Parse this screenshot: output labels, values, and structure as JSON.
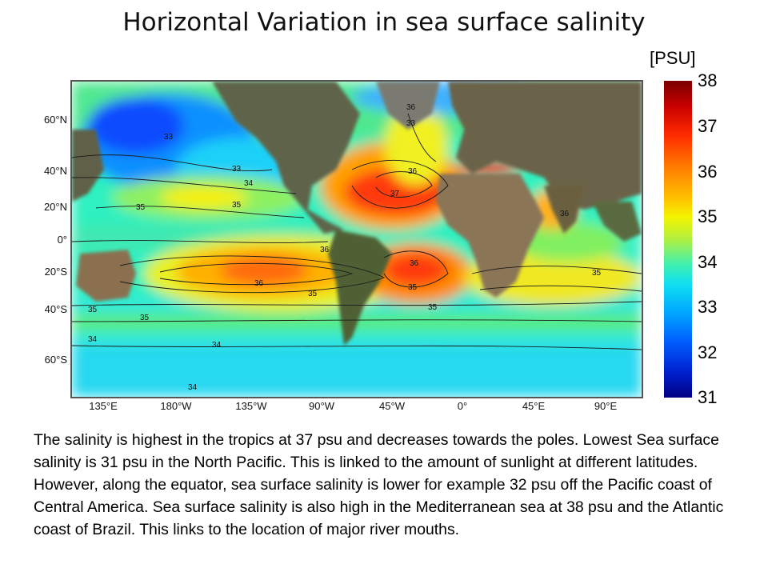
{
  "title": "Horizontal Variation in sea surface salinity",
  "colorbar": {
    "unit": "[PSU]",
    "ticks": [
      "38",
      "37",
      "36",
      "35",
      "34",
      "33",
      "32",
      "31"
    ],
    "range": [
      31,
      38
    ],
    "colors": {
      "high": "#7a0000",
      "mid": "#f4f400",
      "low": "#000080"
    }
  },
  "map": {
    "lat_ticks": [
      "60°N",
      "40°N",
      "20°N",
      "0°",
      "20°S",
      "40°S",
      "60°S"
    ],
    "lon_ticks": [
      "135°E",
      "180°W",
      "135°W",
      "90°W",
      "45°W",
      "0°",
      "45°E",
      "90°E"
    ],
    "contour_labels": [
      "33",
      "33",
      "34",
      "35",
      "35",
      "36",
      "37",
      "36",
      "36",
      "35",
      "35",
      "35",
      "34",
      "34",
      "34",
      "35",
      "36",
      "35",
      "36",
      "35",
      "36",
      "33"
    ]
  },
  "caption": "The salinity is highest in the tropics at 37 psu and decreases towards the poles. Lowest Sea surface salinity is 31 psu in the North Pacific.  This is linked to the amount of sunlight at different latitudes.  However, along the equator, sea surface salinity is lower for example 32 psu off the Pacific coast of Central America.  Sea surface salinity is also high in the Mediterranean sea at 38 psu and the Atlantic coast of Brazil.  This links to the location of major river mouths."
}
